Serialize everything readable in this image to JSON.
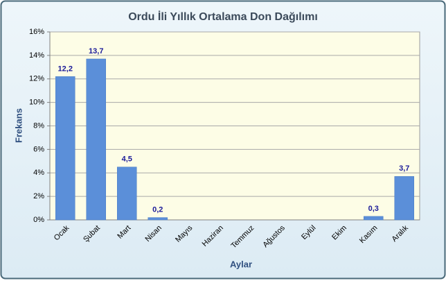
{
  "chart_data": {
    "type": "bar",
    "title": "Ordu İli Yıllık Ortalama Don Dağılımı",
    "x_label": "Aylar",
    "y_label": "Frekans",
    "categories": [
      "Ocak",
      "Şubat",
      "Mart",
      "Nisan",
      "Mayıs",
      "Haziran",
      "Temmuz",
      "Ağustos",
      "Eylül",
      "Ekim",
      "Kasım",
      "Aralık"
    ],
    "values": [
      12.2,
      13.7,
      4.5,
      0.2,
      0,
      0,
      0,
      0,
      0,
      0,
      0.3,
      3.7
    ],
    "value_labels": [
      "12,2",
      "13,7",
      "4,5",
      "0,2",
      null,
      null,
      null,
      null,
      null,
      null,
      "0,3",
      "3,7"
    ],
    "color": "#5b8fd9",
    "ylim": [
      0,
      16
    ],
    "yticks": [
      {
        "value": 0,
        "label": "0%"
      },
      {
        "value": 2,
        "label": "2%"
      },
      {
        "value": 4,
        "label": "4%"
      },
      {
        "value": 6,
        "label": "6%"
      },
      {
        "value": 8,
        "label": "8%"
      },
      {
        "value": 10,
        "label": "10%"
      },
      {
        "value": 12,
        "label": "12%"
      },
      {
        "value": 14,
        "label": "14%"
      },
      {
        "value": 16,
        "label": "16%"
      }
    ],
    "grid": true
  }
}
